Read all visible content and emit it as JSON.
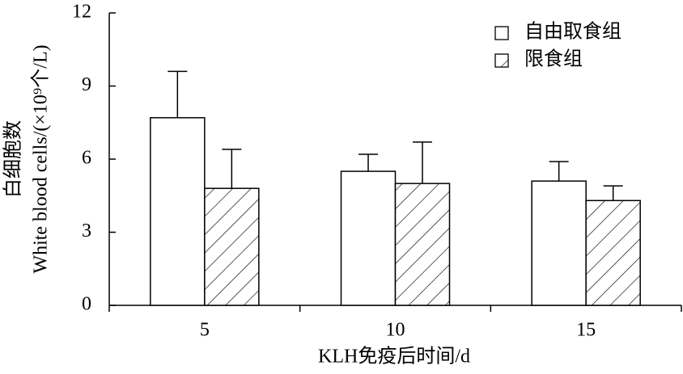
{
  "chart_data": {
    "type": "bar",
    "x_label": "KLH免疫后时间/d",
    "y_label": [
      "白细胞数",
      "White blood cells/(×10⁹个/L)"
    ],
    "categories": [
      "5",
      "10",
      "15"
    ],
    "series": [
      {
        "name": "自由取食组",
        "color": "#ffffff",
        "hatch": false,
        "values": [
          7.7,
          5.5,
          5.1
        ],
        "errors": [
          1.9,
          0.7,
          0.8
        ]
      },
      {
        "name": "限食组",
        "color": "#ffffff",
        "hatch": true,
        "values": [
          4.8,
          5.0,
          4.3
        ],
        "errors": [
          1.6,
          1.7,
          0.6
        ]
      }
    ],
    "ylim": [
      0,
      12
    ],
    "yticks": [
      0,
      3,
      6,
      9,
      12
    ],
    "grid": false,
    "legend": "upper right"
  }
}
